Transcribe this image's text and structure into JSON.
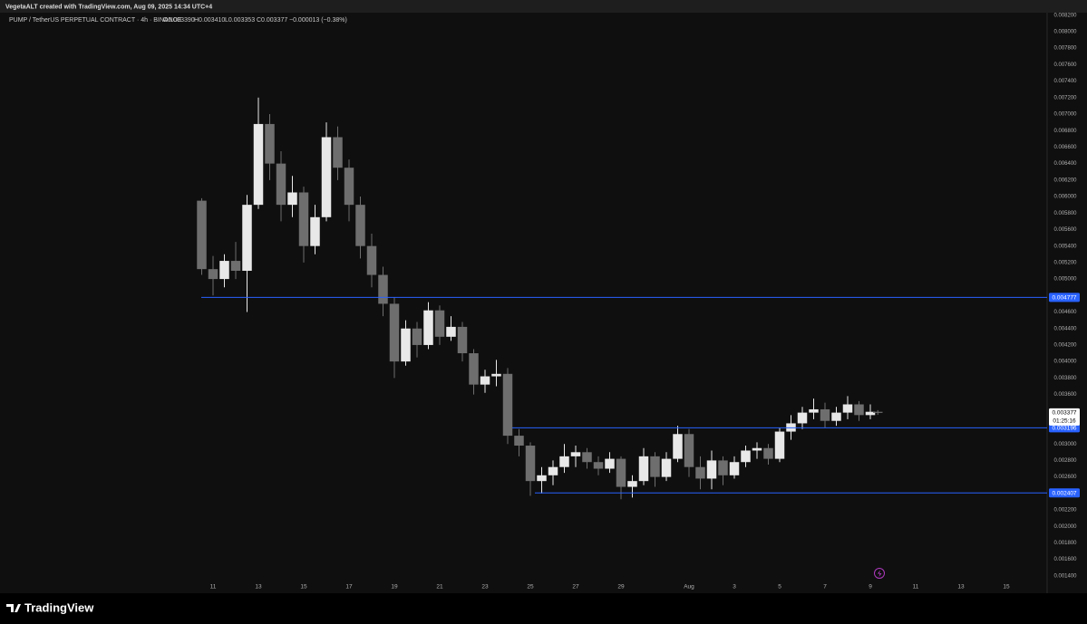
{
  "header": {
    "created_by": "VegetaALT created with TradingView.com, Aug 09, 2025 14:34 UTC+4"
  },
  "footer": {
    "brand": "TradingView"
  },
  "chart_data": {
    "type": "candlestick",
    "legend": {
      "symbol": "PUMP / TetherUS PERPETUAL CONTRACT · 4h · BINANCE",
      "open": "O0.003390",
      "high": "H0.003410",
      "low": "L0.003353",
      "close": "C0.003377",
      "change": "−0.000013 (−0.38%)"
    },
    "up_color": "#e8e8e8",
    "down_color": "#6e6e6e",
    "grid": false,
    "x": [
      10.5,
      11,
      11.5,
      12,
      12.5,
      13,
      13.5,
      14,
      14.5,
      15,
      15.5,
      16,
      16.5,
      17,
      17.5,
      18,
      18.5,
      19,
      19.5,
      20,
      20.5,
      21,
      21.5,
      22,
      22.5,
      23,
      23.5,
      24,
      24.5,
      25,
      25.5,
      26,
      26.5,
      27,
      27.5,
      28,
      28.5,
      29,
      29.5,
      30,
      30.5,
      31,
      31.5,
      32,
      32.5,
      33,
      33.5,
      34,
      34.5,
      35,
      35.5,
      36,
      36.5,
      37,
      37.5,
      38,
      38.5,
      39,
      39.5,
      40,
      40.33
    ],
    "open": [
      0.00595,
      0.00512,
      0.005,
      0.00522,
      0.0051,
      0.0059,
      0.00688,
      0.0064,
      0.0059,
      0.00605,
      0.0054,
      0.00575,
      0.00672,
      0.00635,
      0.0059,
      0.0054,
      0.00505,
      0.0047,
      0.004,
      0.0044,
      0.0042,
      0.00462,
      0.0043,
      0.00442,
      0.0041,
      0.00372,
      0.00382,
      0.00385,
      0.0031,
      0.00298,
      0.00255,
      0.00262,
      0.00272,
      0.00285,
      0.0029,
      0.00278,
      0.0027,
      0.00282,
      0.00248,
      0.00255,
      0.00285,
      0.0026,
      0.00282,
      0.00312,
      0.00272,
      0.00258,
      0.0028,
      0.00262,
      0.00278,
      0.00292,
      0.00295,
      0.00282,
      0.00315,
      0.00325,
      0.00338,
      0.00342,
      0.00328,
      0.00338,
      0.00348,
      0.00335,
      0.00339
    ],
    "high": [
      0.00598,
      0.00528,
      0.0053,
      0.00545,
      0.00602,
      0.0072,
      0.007,
      0.00655,
      0.00625,
      0.00612,
      0.0059,
      0.0069,
      0.00685,
      0.00645,
      0.006,
      0.00555,
      0.00515,
      0.00478,
      0.0045,
      0.00448,
      0.00472,
      0.00468,
      0.00455,
      0.00448,
      0.00415,
      0.0039,
      0.00402,
      0.00392,
      0.00318,
      0.00302,
      0.00272,
      0.0028,
      0.003,
      0.00298,
      0.00295,
      0.00285,
      0.0029,
      0.00285,
      0.00262,
      0.00295,
      0.0029,
      0.0029,
      0.00322,
      0.00318,
      0.00285,
      0.00292,
      0.00285,
      0.00285,
      0.00298,
      0.00302,
      0.003,
      0.0032,
      0.00335,
      0.00345,
      0.00355,
      0.0035,
      0.00345,
      0.00358,
      0.00352,
      0.00348,
      0.00341
    ],
    "low": [
      0.00505,
      0.0048,
      0.0049,
      0.005,
      0.0046,
      0.00585,
      0.0062,
      0.0057,
      0.00575,
      0.0052,
      0.0053,
      0.0057,
      0.0062,
      0.0057,
      0.00525,
      0.0049,
      0.00455,
      0.0038,
      0.00395,
      0.00405,
      0.00415,
      0.0042,
      0.00425,
      0.004,
      0.0036,
      0.00362,
      0.0037,
      0.003,
      0.00285,
      0.00237,
      0.0024,
      0.0025,
      0.00265,
      0.00272,
      0.0027,
      0.00262,
      0.00265,
      0.00233,
      0.00235,
      0.0025,
      0.00248,
      0.00255,
      0.00278,
      0.0026,
      0.00245,
      0.00245,
      0.0025,
      0.00258,
      0.00272,
      0.00282,
      0.00275,
      0.00278,
      0.00305,
      0.00318,
      0.0033,
      0.0032,
      0.00322,
      0.0033,
      0.00328,
      0.0033,
      0.003353
    ],
    "close": [
      0.00512,
      0.005,
      0.00522,
      0.0051,
      0.0059,
      0.00688,
      0.0064,
      0.0059,
      0.00605,
      0.0054,
      0.00575,
      0.00672,
      0.00635,
      0.0059,
      0.0054,
      0.00505,
      0.0047,
      0.004,
      0.0044,
      0.0042,
      0.00462,
      0.0043,
      0.00442,
      0.0041,
      0.00372,
      0.00382,
      0.00385,
      0.0031,
      0.00298,
      0.00255,
      0.00262,
      0.00272,
      0.00285,
      0.0029,
      0.00278,
      0.0027,
      0.00282,
      0.00248,
      0.00255,
      0.00285,
      0.0026,
      0.00282,
      0.00312,
      0.00272,
      0.00258,
      0.0028,
      0.00262,
      0.00278,
      0.00292,
      0.00295,
      0.00282,
      0.00315,
      0.00325,
      0.00338,
      0.00342,
      0.00328,
      0.00338,
      0.00348,
      0.00335,
      0.00339,
      0.003377
    ],
    "countdown": "01:25:16",
    "levels": [
      {
        "value": 0.004777,
        "start": 10.48
      },
      {
        "value": 0.003196,
        "start": 24.2
      },
      {
        "value": 0.002407,
        "start": 25.2
      }
    ],
    "level_color": "#2962ff",
    "xlim": [
      1.84,
      47.8
    ],
    "xticks": [
      11,
      13,
      15,
      17,
      19,
      21,
      23,
      25,
      27,
      29,
      {
        "value": 32,
        "label": "Aug"
      },
      {
        "value": 34,
        "label": "3"
      },
      {
        "value": 36,
        "label": "5"
      },
      {
        "value": 38,
        "label": "7"
      },
      {
        "value": 40,
        "label": "9"
      },
      {
        "value": 42,
        "label": "11"
      },
      {
        "value": 44,
        "label": "13"
      },
      {
        "value": 46,
        "label": "15"
      }
    ],
    "ylim": [
      0.00119,
      0.00823
    ],
    "yticks": [
      {
        "value": 0.0014,
        "label": "0.001400"
      },
      {
        "value": 0.0016,
        "label": "0.001600"
      },
      {
        "value": 0.0018,
        "label": "0.001800"
      },
      {
        "value": 0.002,
        "label": "0.002000"
      },
      {
        "value": 0.0022,
        "label": "0.002200"
      },
      {
        "value": 0.0024,
        "label": "0.002400"
      },
      {
        "value": 0.0026,
        "label": "0.002600"
      },
      {
        "value": 0.0028,
        "label": "0.002800"
      },
      {
        "value": 0.003,
        "label": "0.003000"
      },
      {
        "value": 0.0032,
        "label": "0.003200"
      },
      {
        "value": 0.0034,
        "label": "0.003400"
      },
      {
        "value": 0.0036,
        "label": "0.003600"
      },
      {
        "value": 0.0038,
        "label": "0.003800"
      },
      {
        "value": 0.004,
        "label": "0.004000"
      },
      {
        "value": 0.0042,
        "label": "0.004200"
      },
      {
        "value": 0.0044,
        "label": "0.004400"
      },
      {
        "value": 0.0046,
        "label": "0.004600"
      },
      {
        "value": 0.0048,
        "label": "0.004800"
      },
      {
        "value": 0.005,
        "label": "0.005000"
      },
      {
        "value": 0.0052,
        "label": "0.005200"
      },
      {
        "value": 0.0054,
        "label": "0.005400"
      },
      {
        "value": 0.0056,
        "label": "0.005600"
      },
      {
        "value": 0.0058,
        "label": "0.005800"
      },
      {
        "value": 0.006,
        "label": "0.006000"
      },
      {
        "value": 0.0062,
        "label": "0.006200"
      },
      {
        "value": 0.0064,
        "label": "0.006400"
      },
      {
        "value": 0.0066,
        "label": "0.006600"
      },
      {
        "value": 0.0068,
        "label": "0.006800"
      },
      {
        "value": 0.007,
        "label": "0.007000"
      },
      {
        "value": 0.0072,
        "label": "0.007200"
      },
      {
        "value": 0.0074,
        "label": "0.007400"
      },
      {
        "value": 0.0076,
        "label": "0.007600"
      },
      {
        "value": 0.0078,
        "label": "0.007800"
      },
      {
        "value": 0.008,
        "label": "0.008000"
      },
      {
        "value": 0.0082,
        "label": "0.008200"
      }
    ]
  }
}
